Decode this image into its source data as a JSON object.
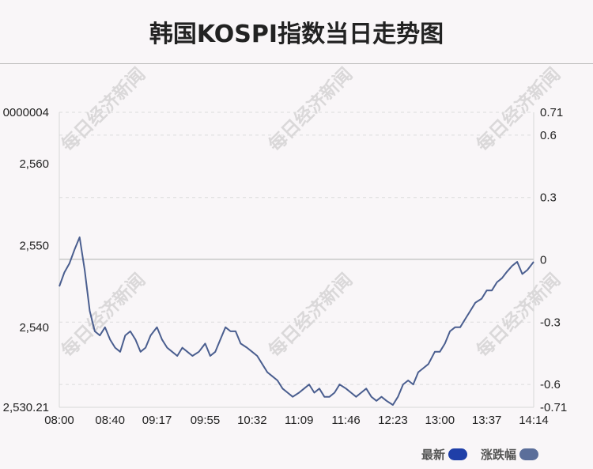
{
  "title": "韩国KOSPI指数当日走势图",
  "watermark": "每日经济新闻",
  "legend": [
    {
      "label": "最新",
      "color": "#1f3fa8"
    },
    {
      "label": "涨跌幅",
      "color": "#5b6e9a"
    }
  ],
  "chart_data": {
    "type": "line",
    "x_ticks": [
      "08:00",
      "08:40",
      "09:17",
      "09:55",
      "10:32",
      "11:09",
      "11:46",
      "12:23",
      "13:00",
      "13:37",
      "14:14"
    ],
    "y_left_ticks": [
      "0000004",
      "2,560",
      "2,550",
      "2,540",
      "2,530.21"
    ],
    "y_right_ticks": [
      "0.71",
      "0.6",
      "0.3",
      "0",
      "-0.3",
      "-0.6",
      "-0.71"
    ],
    "ylim_left": [
      2530.21,
      2566.28
    ],
    "ylim_right": [
      -0.71,
      0.71
    ],
    "reference_value": 2548.3,
    "line_color": "#4a5e8f",
    "series": [
      {
        "x": [
          "08:00",
          "08:04",
          "08:08",
          "08:12",
          "08:16",
          "08:20",
          "08:24",
          "08:28",
          "08:32",
          "08:36",
          "08:40",
          "08:44",
          "08:48",
          "08:52",
          "08:56",
          "09:00",
          "09:04",
          "09:08",
          "09:12",
          "09:17",
          "09:21",
          "09:25",
          "09:29",
          "09:33",
          "09:37",
          "09:41",
          "09:45",
          "09:50",
          "09:55",
          "09:59",
          "10:03",
          "10:07",
          "10:11",
          "10:15",
          "10:19",
          "10:23",
          "10:28",
          "10:32",
          "10:36",
          "10:40",
          "10:44",
          "10:48",
          "10:52",
          "10:56",
          "11:00",
          "11:04",
          "11:09",
          "11:13",
          "11:17",
          "11:21",
          "11:25",
          "11:29",
          "11:33",
          "11:37",
          "11:41",
          "11:46",
          "11:50",
          "11:54",
          "11:58",
          "12:02",
          "12:06",
          "12:10",
          "12:14",
          "12:18",
          "12:23",
          "12:27",
          "12:31",
          "12:35",
          "12:39",
          "12:43",
          "12:47",
          "12:51",
          "12:56",
          "13:00",
          "13:04",
          "13:08",
          "13:12",
          "13:16",
          "13:20",
          "13:24",
          "13:28",
          "13:33",
          "13:37",
          "13:41",
          "13:45",
          "13:49",
          "13:53",
          "13:57",
          "14:01",
          "14:05",
          "14:09",
          "14:14"
        ],
        "values": [
          2545.0,
          2546.7,
          2547.8,
          2549.5,
          2551.0,
          2547.0,
          2542.0,
          2539.5,
          2539.0,
          2540.0,
          2538.5,
          2537.5,
          2537.0,
          2539.0,
          2539.5,
          2538.5,
          2537.0,
          2537.5,
          2539.0,
          2540.0,
          2538.5,
          2537.5,
          2537.0,
          2536.5,
          2537.5,
          2537.0,
          2536.5,
          2537.0,
          2538.0,
          2536.5,
          2537.0,
          2538.5,
          2540.0,
          2539.5,
          2539.5,
          2538.0,
          2537.5,
          2537.0,
          2536.5,
          2535.5,
          2534.5,
          2534.0,
          2533.5,
          2532.5,
          2532.0,
          2531.5,
          2532.0,
          2532.5,
          2533.0,
          2532.0,
          2532.5,
          2531.5,
          2531.5,
          2532.0,
          2533.0,
          2532.5,
          2532.0,
          2531.5,
          2532.0,
          2532.5,
          2531.5,
          2531.0,
          2531.5,
          2531.0,
          2530.5,
          2531.5,
          2533.0,
          2533.5,
          2533.0,
          2534.5,
          2535.0,
          2535.5,
          2537.0,
          2537.0,
          2538.0,
          2539.5,
          2540.0,
          2540.0,
          2541.0,
          2542.0,
          2543.0,
          2543.5,
          2544.5,
          2544.5,
          2545.5,
          2546.0,
          2546.8,
          2547.5,
          2548.0,
          2546.5,
          2547.0,
          2548.0
        ]
      }
    ]
  }
}
